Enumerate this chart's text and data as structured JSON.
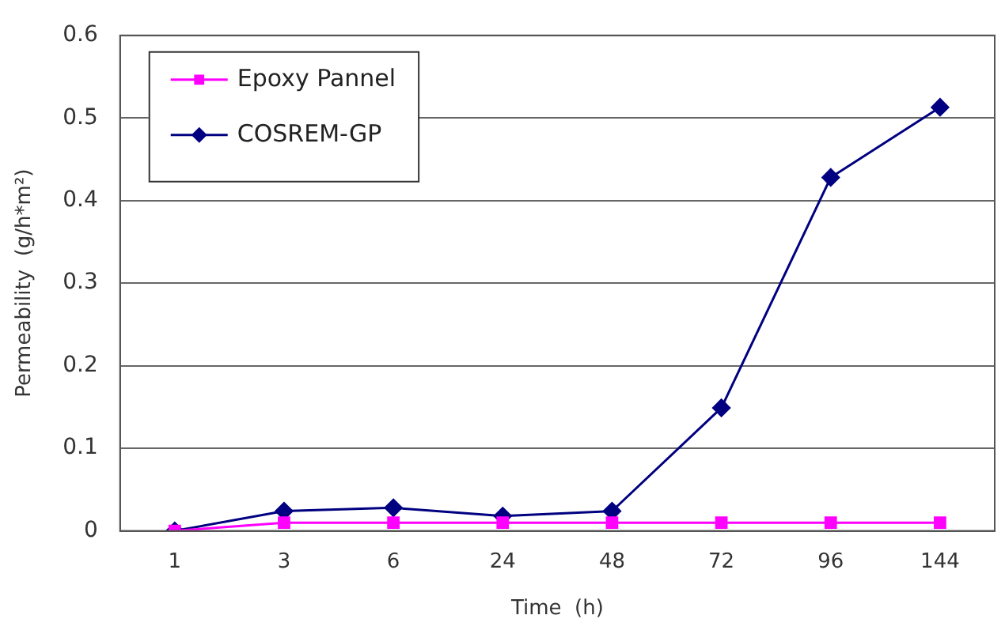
{
  "chart_data": {
    "type": "line",
    "xlabel": "Time  (h)",
    "ylabel": "Permeability  (g/h*m²)",
    "categories": [
      "1",
      "3",
      "6",
      "24",
      "48",
      "72",
      "96",
      "144"
    ],
    "series": [
      {
        "name": "Epoxy Pannel",
        "color": "#ff00ff",
        "marker": "square",
        "values": [
          0,
          0.01,
          0.01,
          0.01,
          0.01,
          0.01,
          0.01,
          0.01
        ]
      },
      {
        "name": "COSREM-GP",
        "color": "#000080",
        "marker": "diamond",
        "values": [
          0,
          0.024,
          0.028,
          0.018,
          0.024,
          0.149,
          0.428,
          0.513
        ]
      }
    ],
    "ylim": [
      0,
      0.6
    ],
    "yticks": [
      0,
      0.1,
      0.2,
      0.3,
      0.4,
      0.5,
      0.6
    ],
    "grid": "y",
    "legend": "top left",
    "line_style": "solid"
  }
}
